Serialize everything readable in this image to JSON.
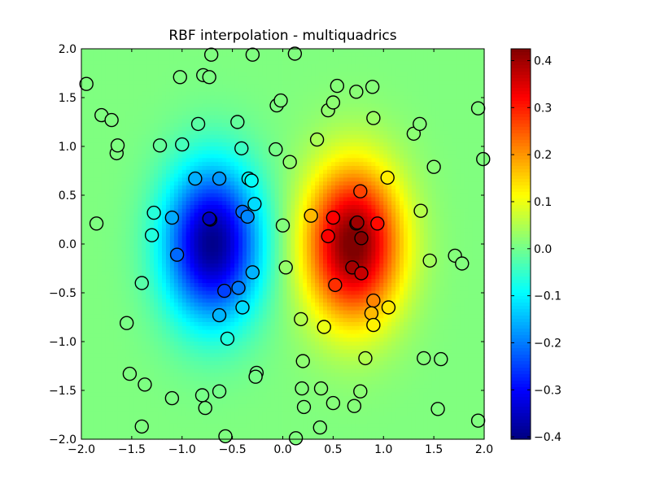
{
  "chart_data": {
    "type": "heatmap",
    "title": "RBF interpolation - multiquadrics",
    "xlabel": "",
    "ylabel": "",
    "xlim": [
      -2.0,
      2.0
    ],
    "ylim": [
      -2.0,
      2.0
    ],
    "xticks": [
      "−2.0",
      "−1.5",
      "−1.0",
      "−0.5",
      "0.0",
      "0.5",
      "1.0",
      "1.5",
      "2.0"
    ],
    "yticks": [
      "2.0",
      "1.5",
      "1.0",
      "0.5",
      "0.0",
      "−0.5",
      "−1.0",
      "−1.5",
      "−2.0"
    ],
    "colormap": "jet",
    "colorbar": {
      "range": [
        -0.405,
        0.425
      ],
      "ticks": [
        "0.4",
        "0.3",
        "0.2",
        "0.1",
        "0.0",
        "−0.1",
        "−0.2",
        "−0.3",
        "−0.4"
      ],
      "tick_values": [
        0.4,
        0.3,
        0.2,
        0.1,
        0.0,
        -0.1,
        -0.2,
        -0.3,
        -0.4
      ]
    },
    "field": {
      "description": "Interpolated surface approx. x*exp(-x^2-y^2) pattern: negative lobe centered near (-0.7,0), positive lobe near (0.7,0)",
      "min_center": [
        -0.7,
        0.0
      ],
      "max_center": [
        0.7,
        0.0
      ],
      "min_value": -0.405,
      "max_value": 0.425
    },
    "scatter_points": [
      [
        -1.95,
        1.64
      ],
      [
        -1.8,
        1.32
      ],
      [
        -1.7,
        1.27
      ],
      [
        -1.65,
        0.93
      ],
      [
        -1.64,
        1.01
      ],
      [
        -1.85,
        0.21
      ],
      [
        -1.28,
        0.32
      ],
      [
        -1.3,
        0.09
      ],
      [
        -1.4,
        -0.4
      ],
      [
        -1.55,
        -0.81
      ],
      [
        -1.52,
        -1.33
      ],
      [
        -1.37,
        -1.44
      ],
      [
        -1.4,
        -1.87
      ],
      [
        -1.22,
        1.01
      ],
      [
        -1.0,
        1.02
      ],
      [
        -1.02,
        1.71
      ],
      [
        -0.79,
        1.73
      ],
      [
        -0.73,
        1.71
      ],
      [
        -0.71,
        1.94
      ],
      [
        -0.3,
        1.94
      ],
      [
        -0.84,
        1.23
      ],
      [
        -0.45,
        1.25
      ],
      [
        -0.41,
        0.98
      ],
      [
        -0.87,
        0.67
      ],
      [
        -0.63,
        0.67
      ],
      [
        -0.34,
        0.67
      ],
      [
        -0.31,
        0.65
      ],
      [
        -0.28,
        0.41
      ],
      [
        -0.72,
        0.25
      ],
      [
        -0.73,
        0.26
      ],
      [
        -1.1,
        0.27
      ],
      [
        -0.4,
        0.33
      ],
      [
        -0.35,
        0.28
      ],
      [
        -1.05,
        -0.11
      ],
      [
        -0.3,
        -0.29
      ],
      [
        -0.58,
        -0.48
      ],
      [
        -0.44,
        -0.45
      ],
      [
        -0.4,
        -0.65
      ],
      [
        -0.63,
        -0.73
      ],
      [
        -0.55,
        -0.97
      ],
      [
        -1.1,
        -1.58
      ],
      [
        -0.8,
        -1.55
      ],
      [
        -0.77,
        -1.68
      ],
      [
        -0.63,
        -1.51
      ],
      [
        -0.57,
        -1.97
      ],
      [
        -0.26,
        -1.32
      ],
      [
        -0.27,
        -1.36
      ],
      [
        0.12,
        1.95
      ],
      [
        -0.06,
        1.42
      ],
      [
        -0.02,
        1.47
      ],
      [
        -0.07,
        0.97
      ],
      [
        0.07,
        0.84
      ],
      [
        0.0,
        0.19
      ],
      [
        0.03,
        -0.24
      ],
      [
        0.28,
        0.29
      ],
      [
        0.34,
        1.07
      ],
      [
        0.45,
        1.37
      ],
      [
        0.5,
        1.45
      ],
      [
        0.54,
        1.62
      ],
      [
        0.73,
        1.56
      ],
      [
        0.89,
        1.61
      ],
      [
        0.9,
        1.29
      ],
      [
        1.04,
        0.68
      ],
      [
        0.77,
        0.54
      ],
      [
        0.5,
        0.27
      ],
      [
        0.73,
        0.21
      ],
      [
        0.74,
        0.22
      ],
      [
        0.94,
        0.21
      ],
      [
        0.78,
        0.06
      ],
      [
        0.45,
        0.08
      ],
      [
        0.69,
        -0.24
      ],
      [
        0.78,
        -0.3
      ],
      [
        0.52,
        -0.42
      ],
      [
        0.9,
        -0.58
      ],
      [
        0.88,
        -0.71
      ],
      [
        0.9,
        -0.83
      ],
      [
        1.05,
        -0.65
      ],
      [
        0.18,
        -0.77
      ],
      [
        0.41,
        -0.85
      ],
      [
        0.2,
        -1.2
      ],
      [
        0.82,
        -1.17
      ],
      [
        0.19,
        -1.48
      ],
      [
        0.21,
        -1.67
      ],
      [
        0.38,
        -1.48
      ],
      [
        0.5,
        -1.63
      ],
      [
        0.71,
        -1.66
      ],
      [
        0.77,
        -1.51
      ],
      [
        0.37,
        -1.88
      ],
      [
        0.13,
        -1.99
      ],
      [
        1.3,
        1.13
      ],
      [
        1.36,
        1.23
      ],
      [
        1.5,
        0.79
      ],
      [
        1.37,
        0.34
      ],
      [
        1.46,
        -0.17
      ],
      [
        1.71,
        -0.12
      ],
      [
        1.78,
        -0.2
      ],
      [
        1.4,
        -1.17
      ],
      [
        1.57,
        -1.18
      ],
      [
        1.54,
        -1.69
      ],
      [
        1.94,
        1.39
      ],
      [
        1.99,
        0.87
      ],
      [
        1.94,
        -1.81
      ]
    ]
  }
}
